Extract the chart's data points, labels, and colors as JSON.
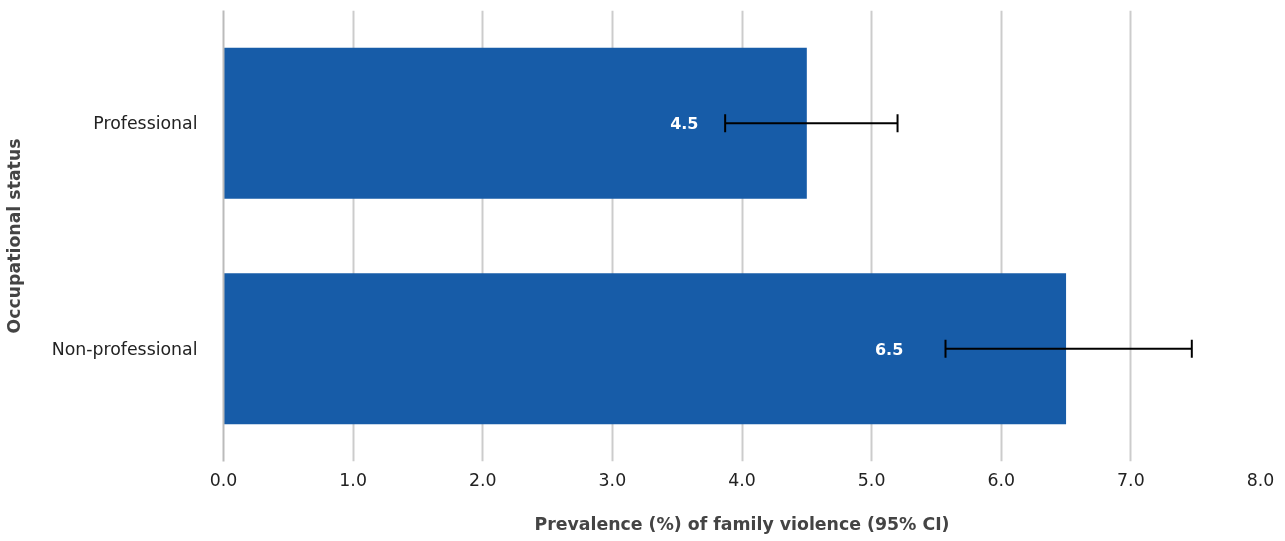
{
  "chart_data": {
    "type": "bar",
    "orientation": "horizontal",
    "xlabel": "Prevalence (%) of family violence (95% CI)",
    "ylabel": "Occupational status",
    "categories": [
      "Professional",
      "Non-professional"
    ],
    "values": [
      4.5,
      6.5
    ],
    "color": "#175ca8",
    "errors": [
      [
        3.87,
        5.2
      ],
      [
        5.57,
        7.47
      ]
    ],
    "data_labels": true,
    "grid": "x",
    "xlim": [
      0,
      8
    ],
    "xticks": [
      {
        "value": 0,
        "label": "0.0"
      },
      {
        "value": 1,
        "label": "1.0"
      },
      {
        "value": 2,
        "label": "2.0"
      },
      {
        "value": 3,
        "label": "3.0"
      },
      {
        "value": 4,
        "label": "4.0"
      },
      {
        "value": 5,
        "label": "5.0"
      },
      {
        "value": 6,
        "label": "6.0"
      },
      {
        "value": 7,
        "label": "7.0"
      },
      {
        "value": 8,
        "label": "8.0"
      }
    ]
  }
}
